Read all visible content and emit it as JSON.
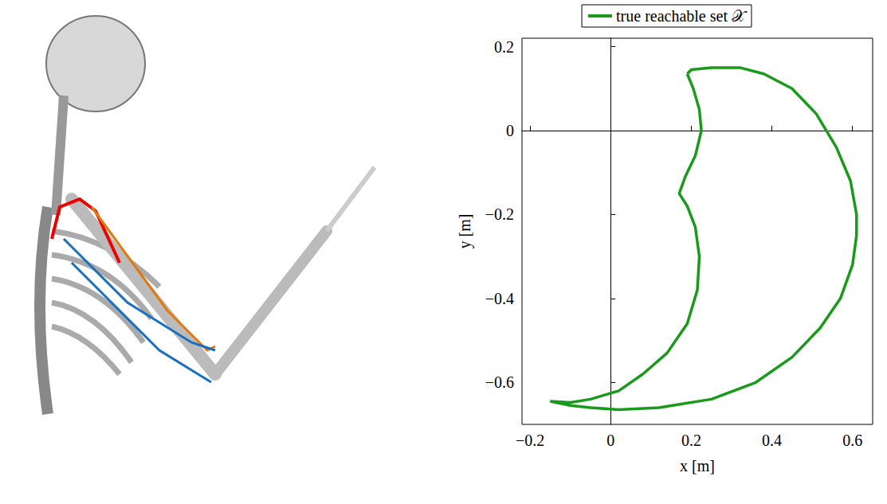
{
  "chart_data": {
    "type": "line",
    "xlabel": "x [m]",
    "ylabel": "y [m]",
    "xlim": [
      -0.22,
      0.65
    ],
    "ylim": [
      -0.7,
      0.22
    ],
    "xticks": [
      {
        "value": -0.2,
        "label": "−0.2"
      },
      0,
      0.2,
      0.4,
      0.6
    ],
    "yticks": [
      {
        "value": -0.6,
        "label": "−0.6"
      },
      {
        "value": -0.4,
        "label": "−0.4"
      },
      {
        "value": -0.2,
        "label": "−0.2"
      },
      0,
      0.2
    ],
    "grid": false,
    "legend": "top",
    "series": [
      {
        "name": "true reachable set 𝒳",
        "color": "#1a9a1a",
        "x": [
          0.19,
          0.2,
          0.25,
          0.32,
          0.38,
          0.45,
          0.51,
          0.56,
          0.595,
          0.61,
          0.61,
          0.6,
          0.57,
          0.52,
          0.45,
          0.36,
          0.25,
          0.12,
          0.02,
          -0.05,
          -0.1,
          -0.15,
          -0.1,
          -0.05,
          0.02,
          0.08,
          0.14,
          0.19,
          0.215,
          0.22,
          0.21,
          0.19,
          0.17,
          0.185,
          0.21,
          0.225,
          0.22,
          0.205,
          0.19
        ],
        "values": [
          0.135,
          0.145,
          0.15,
          0.15,
          0.135,
          0.1,
          0.04,
          -0.04,
          -0.12,
          -0.2,
          -0.25,
          -0.32,
          -0.4,
          -0.47,
          -0.54,
          -0.6,
          -0.64,
          -0.66,
          -0.665,
          -0.66,
          -0.655,
          -0.645,
          -0.648,
          -0.64,
          -0.62,
          -0.58,
          -0.53,
          -0.46,
          -0.38,
          -0.3,
          -0.23,
          -0.18,
          -0.15,
          -0.11,
          -0.06,
          0,
          0.05,
          0.1,
          0.135
        ]
      }
    ]
  }
}
